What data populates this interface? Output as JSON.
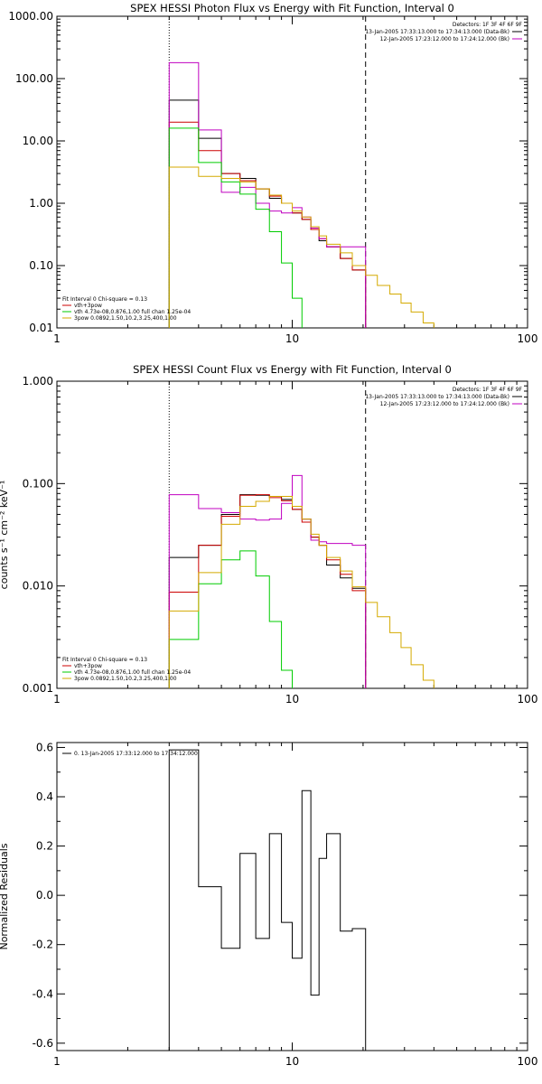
{
  "chart_data": [
    {
      "type": "line",
      "title": "SPEX HESSI Photon Flux vs Energy with Fit Function, Interval 0",
      "xscale": "log",
      "yscale": "log",
      "xlim": [
        1,
        100
      ],
      "ylim": [
        0.01,
        1000
      ],
      "xticks": [
        "1",
        "10",
        "100"
      ],
      "yticks": [
        "0.01",
        "0.10",
        "1.00",
        "10.00",
        "100.00",
        "1000.00"
      ],
      "ylabel": "",
      "detectors_text": "Detectors: 1F 3F 4F 6F 9F",
      "vlines": [
        {
          "x": 3,
          "style": "dotted"
        },
        {
          "x": 20.5,
          "style": "dashed"
        }
      ],
      "legend_right": [
        {
          "text": "13-Jan-2005 17:33:13.000 to 17:34:13.000 (Data-Bk)",
          "color": "#000000"
        },
        {
          "text": "12-Jan-2005 17:23:12.000 to 17:24:12.000 (Bk)",
          "color": "#c000c0"
        }
      ],
      "legend_left_header": "Fit Interval 0   Chi-square = 0.13",
      "legend_left": [
        {
          "text": "vth+3pow",
          "color": "#cc0000"
        },
        {
          "text": "vth 4.73e-08,0.876,1.00  full chan 1.25e-04",
          "color": "#00cc00"
        },
        {
          "text": "3pow 0.0892,1.50,10.2,3.25,400,1.00",
          "color": "#d4aa00"
        }
      ],
      "edges": [
        3,
        4,
        5,
        6,
        7,
        8,
        9,
        10,
        11,
        12,
        13,
        14,
        16,
        18,
        20.5,
        23,
        26,
        29,
        32,
        36,
        40,
        45
      ],
      "series": [
        {
          "color": "#000000",
          "values": [
            45,
            11,
            3,
            2.5,
            1.7,
            1.2,
            1.0,
            0.7,
            0.55,
            0.38,
            0.25,
            0.2,
            0.13,
            0.085
          ]
        },
        {
          "color": "#cc0000",
          "values": [
            20,
            7,
            3,
            2.3,
            1.7,
            1.3,
            1.0,
            0.7,
            0.55,
            0.38,
            0.27,
            0.2,
            0.13,
            0.085
          ]
        },
        {
          "color": "#c000c0",
          "values": [
            180,
            15,
            1.5,
            1.8,
            1.0,
            0.75,
            0.7,
            0.85,
            0.6,
            0.4,
            0.27,
            0.2,
            0.2,
            0.2
          ]
        },
        {
          "color": "#00cc00",
          "values": [
            16,
            4.5,
            2.2,
            1.4,
            0.8,
            0.35,
            0.11,
            0.03,
            0.008
          ]
        },
        {
          "color": "#d4aa00",
          "values": [
            3.8,
            2.7,
            2.5,
            2.2,
            1.7,
            1.35,
            1.0,
            0.75,
            0.6,
            0.42,
            0.3,
            0.22,
            0.16,
            0.1,
            0.07,
            0.048,
            0.035,
            0.025,
            0.018,
            0.012,
            0.009
          ]
        }
      ]
    },
    {
      "type": "line",
      "title": "SPEX HESSI Count Flux vs Energy with Fit Function, Interval 0",
      "xscale": "log",
      "yscale": "log",
      "xlim": [
        1,
        100
      ],
      "ylim": [
        0.001,
        1
      ],
      "xticks": [
        "1",
        "10",
        "100"
      ],
      "yticks": [
        "0.001",
        "0.010",
        "0.100",
        "1.000"
      ],
      "ylabel": "counts s⁻¹ cm⁻² keV⁻¹",
      "detectors_text": "Detectors: 1F 3F 4F 6F 9F",
      "vlines": [
        {
          "x": 3,
          "style": "dotted"
        },
        {
          "x": 20.5,
          "style": "dashed"
        }
      ],
      "legend_right": [
        {
          "text": "13-Jan-2005 17:33:13.000 to 17:34:13.000 (Data-Bk)",
          "color": "#000000"
        },
        {
          "text": "12-Jan-2005 17:23:12.000 to 17:24:12.000 (Bk)",
          "color": "#c000c0"
        }
      ],
      "legend_left_header": "Fit Interval 0   Chi-square = 0.13",
      "legend_left": [
        {
          "text": "vth+3pow",
          "color": "#cc0000"
        },
        {
          "text": "vth 4.73e-08,0.876,1.00  full chan 1.25e-04",
          "color": "#00cc00"
        },
        {
          "text": "3pow 0.0892,1.50,10.2,3.25,400,1.00",
          "color": "#d4aa00"
        }
      ],
      "edges": [
        3,
        4,
        5,
        6,
        7,
        8,
        9,
        10,
        11,
        12,
        13,
        14,
        16,
        18,
        20.5,
        23,
        26,
        29,
        32,
        36,
        40,
        45
      ],
      "series": [
        {
          "color": "#000000",
          "values": [
            0.019,
            0.025,
            0.05,
            0.078,
            0.077,
            0.075,
            0.07,
            0.056,
            0.045,
            0.03,
            0.025,
            0.016,
            0.012,
            0.0095
          ]
        },
        {
          "color": "#cc0000",
          "values": [
            0.0087,
            0.025,
            0.048,
            0.077,
            0.078,
            0.073,
            0.068,
            0.056,
            0.042,
            0.03,
            0.025,
            0.018,
            0.013,
            0.009
          ]
        },
        {
          "color": "#c000c0",
          "values": [
            0.078,
            0.057,
            0.052,
            0.045,
            0.044,
            0.045,
            0.064,
            0.12,
            0.045,
            0.028,
            0.027,
            0.026,
            0.026,
            0.025
          ]
        },
        {
          "color": "#00cc00",
          "values": [
            0.003,
            0.0105,
            0.018,
            0.022,
            0.0125,
            0.0045,
            0.0015
          ]
        },
        {
          "color": "#d4aa00",
          "values": [
            0.0057,
            0.0135,
            0.04,
            0.06,
            0.067,
            0.075,
            0.075,
            0.06,
            0.045,
            0.032,
            0.025,
            0.019,
            0.014,
            0.0098,
            0.0069,
            0.005,
            0.0035,
            0.0025,
            0.0017,
            0.0012,
            0.00095
          ]
        }
      ]
    },
    {
      "type": "line",
      "title": "",
      "xscale": "log",
      "yscale": "linear",
      "xlim": [
        1,
        100
      ],
      "ylim": [
        -0.63,
        0.62
      ],
      "xticks": [
        "1",
        "10",
        "100"
      ],
      "yticks": [
        "-0.6",
        "-0.4",
        "-0.2",
        "0.0",
        "0.2",
        "0.4",
        "0.6"
      ],
      "ylabel": "Normalized Residuals",
      "legend_text": "0. 13-Jan-2005 17:33:12.000 to 17:34:12.000",
      "edges": [
        3,
        4,
        5,
        6,
        7,
        8,
        9,
        10,
        11,
        12,
        13,
        14,
        16,
        18,
        20.5
      ],
      "series": [
        {
          "color": "#000000",
          "values": [
            0.59,
            0.035,
            -0.215,
            0.17,
            -0.175,
            0.25,
            -0.11,
            -0.255,
            0.425,
            -0.405,
            0.15,
            0.25,
            -0.145,
            -0.135
          ]
        }
      ]
    }
  ]
}
